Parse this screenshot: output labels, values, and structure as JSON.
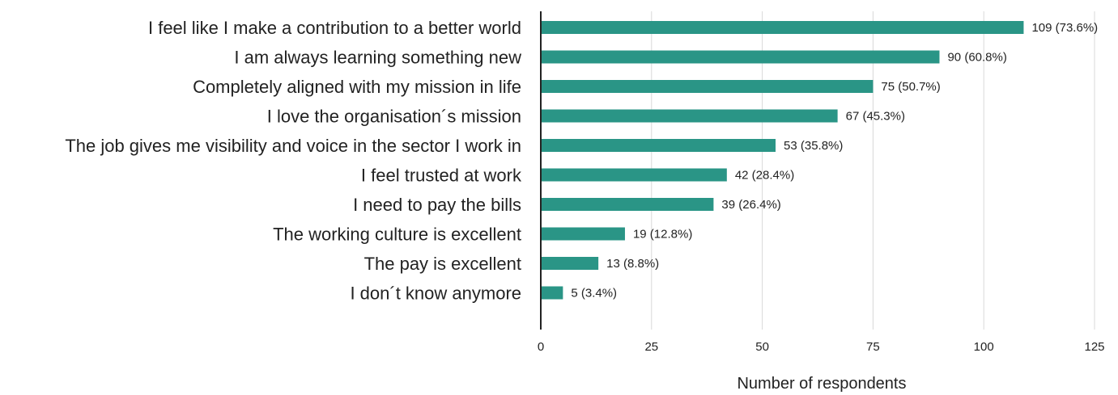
{
  "chart_data": {
    "type": "bar",
    "orientation": "horizontal",
    "categories": [
      "I feel like I make a contribution to a better world",
      "I am always learning something new",
      "Completely aligned with my mission in life",
      "I love the organisation´s mission",
      "The job gives me visibility and voice in the sector I work in",
      "I feel trusted at work",
      "I need to pay the bills",
      "The working culture is excellent",
      "The pay is excellent",
      "I don´t know anymore"
    ],
    "values": [
      109,
      90,
      75,
      67,
      53,
      42,
      39,
      19,
      13,
      5
    ],
    "data_labels": [
      "109 (73.6%)",
      "90 (60.8%)",
      "75 (50.7%)",
      "67 (45.3%)",
      "53 (35.8%)",
      "42 (28.4%)",
      "39 (26.4%)",
      "19 (12.8%)",
      "13 (8.8%)",
      "5 (3.4%)"
    ],
    "x_ticks": [
      0,
      25,
      50,
      75,
      100,
      125
    ],
    "xlim": [
      0,
      125
    ],
    "xlabel": "Number of respondents",
    "ylabel": "",
    "title": "",
    "grid": true,
    "legend": "none",
    "bar_color": "#2a9586",
    "grid_color": "#d9d9d9",
    "axis_color": "#222222"
  }
}
